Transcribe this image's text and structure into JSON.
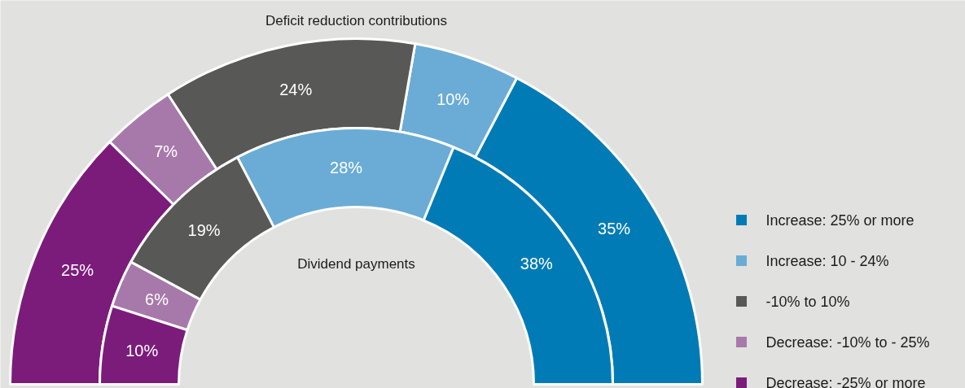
{
  "chart_data": {
    "type": "donut",
    "categories": [
      "Increase: 25% or more",
      "Increase: 10 - 24%",
      "-10% to 10%",
      "Decrease: -10% to - 25%",
      "Decrease: -25% or more"
    ],
    "colors": [
      "#007bb5",
      "#6aacd5",
      "#585856",
      "#a779aa",
      "#7b1c7b"
    ],
    "legend": "right",
    "series": [
      {
        "name": "Deficit reduction contributions",
        "values": [
          35,
          10,
          24,
          7,
          25
        ],
        "value_labels": [
          "35%",
          "10%",
          "24%",
          "7%",
          "25%"
        ]
      },
      {
        "name": "Dividend payments",
        "values": [
          38,
          28,
          19,
          6,
          10
        ],
        "value_labels": [
          "38%",
          "28%",
          "19%",
          "6%",
          "10%"
        ]
      }
    ]
  }
}
